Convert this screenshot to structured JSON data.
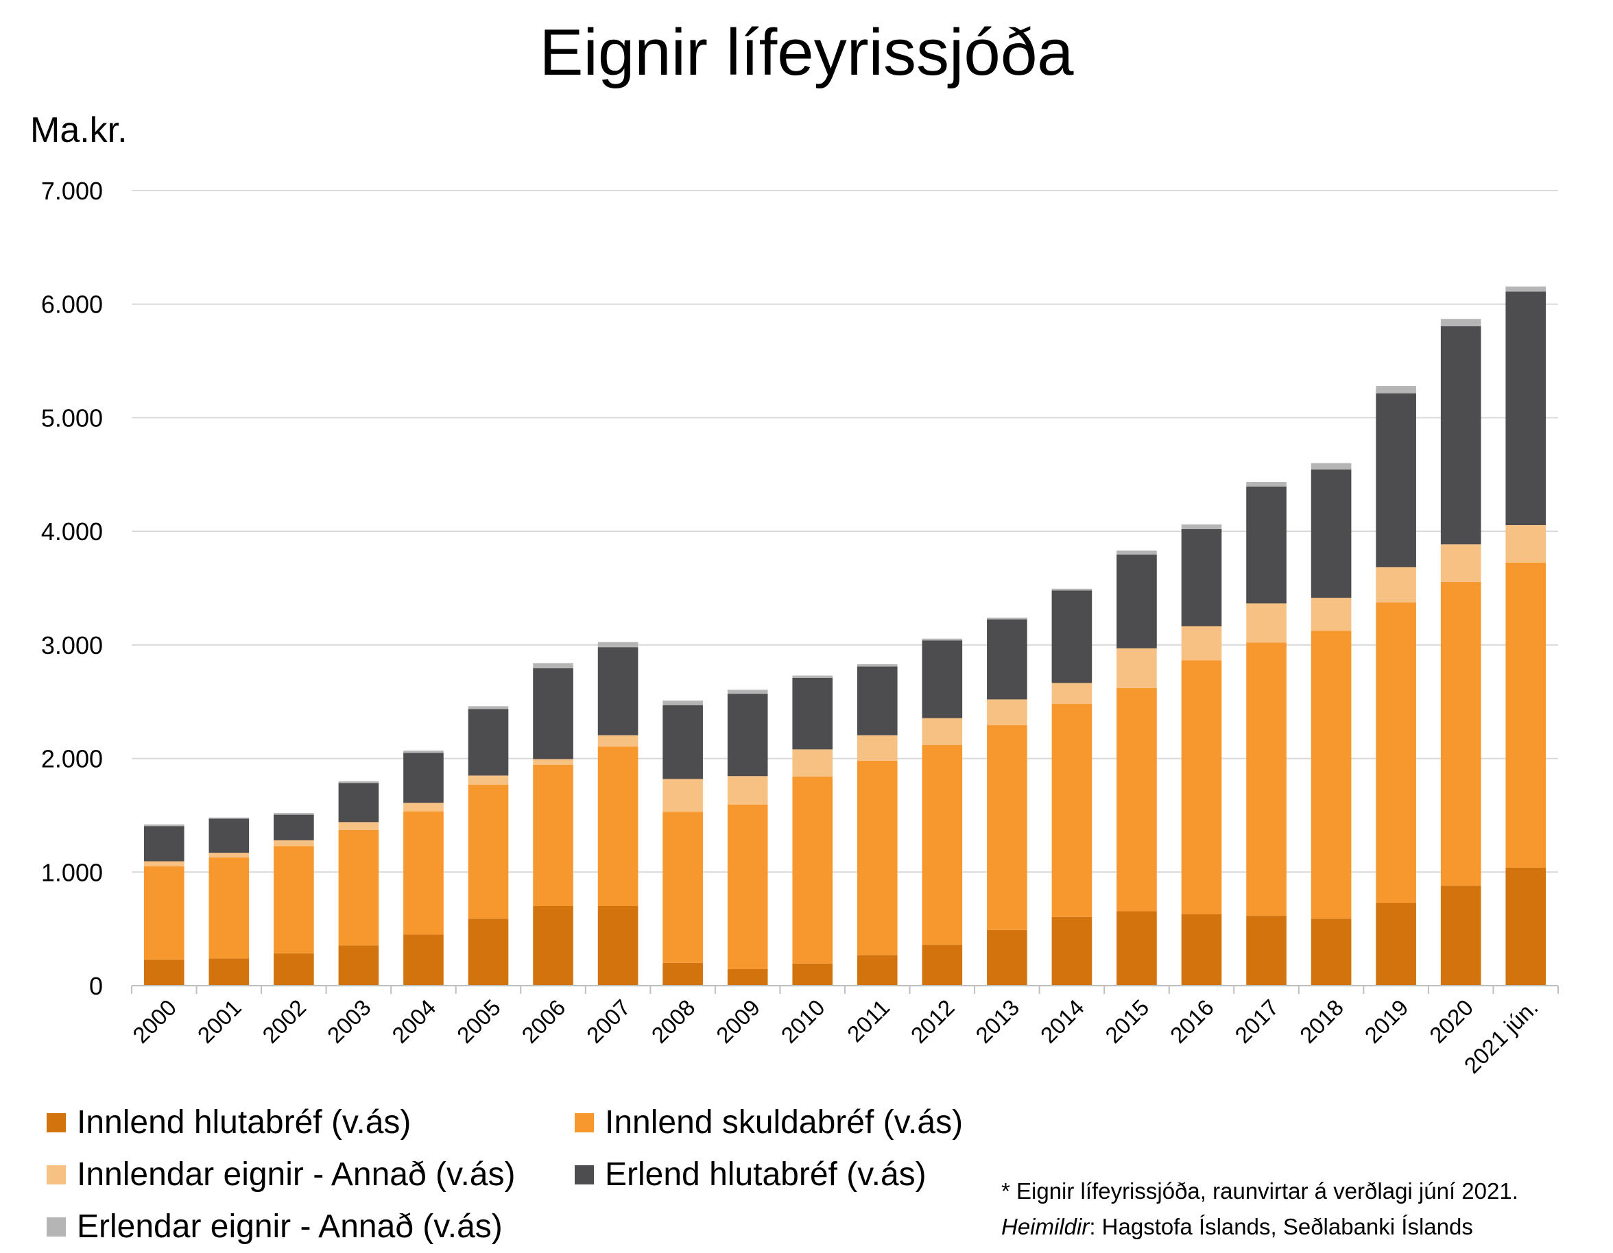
{
  "chart_data": {
    "type": "bar",
    "stacked": true,
    "title": "Eignir lífeyrissjóða",
    "ylabel": "Ma.kr.",
    "xlabel": "",
    "ylim": [
      0,
      7000
    ],
    "yticks": [
      0,
      1000,
      2000,
      3000,
      4000,
      5000,
      6000,
      7000
    ],
    "ytick_labels": [
      "0",
      "1.000",
      "2.000",
      "3.000",
      "4.000",
      "5.000",
      "6.000",
      "7.000"
    ],
    "grid": true,
    "legend_position": "bottom-left",
    "categories": [
      "2000",
      "2001",
      "2002",
      "2003",
      "2004",
      "2005",
      "2006",
      "2007",
      "2008",
      "2009",
      "2010",
      "2011",
      "2012",
      "2013",
      "2014",
      "2015",
      "2016",
      "2017",
      "2018",
      "2019",
      "2020",
      "2021 jún."
    ],
    "series": [
      {
        "name": "Innlend hlutabréf (v.ás)",
        "color": "#D2730E",
        "values": [
          230,
          240,
          285,
          355,
          450,
          590,
          700,
          700,
          200,
          145,
          195,
          270,
          360,
          490,
          605,
          655,
          630,
          615,
          590,
          730,
          880,
          1040
        ]
      },
      {
        "name": "Innlend skuldabréf (v.ás)",
        "color": "#F7982F",
        "values": [
          820,
          890,
          945,
          1015,
          1085,
          1180,
          1245,
          1405,
          1330,
          1450,
          1645,
          1710,
          1760,
          1805,
          1875,
          1965,
          2235,
          2405,
          2535,
          2645,
          2675,
          2685
        ]
      },
      {
        "name": "Innlendar eignir - Annað (v.ás)",
        "color": "#F8C184",
        "values": [
          45,
          40,
          50,
          70,
          75,
          80,
          50,
          100,
          290,
          250,
          240,
          225,
          235,
          225,
          185,
          350,
          300,
          345,
          290,
          310,
          330,
          330
        ]
      },
      {
        "name": "Erlend hlutabréf (v.ás)",
        "color": "#4D4D4F",
        "values": [
          310,
          300,
          225,
          345,
          440,
          585,
          800,
          775,
          650,
          725,
          630,
          605,
          685,
          705,
          815,
          825,
          855,
          1030,
          1130,
          1530,
          1920,
          2055
        ]
      },
      {
        "name": "Erlendar eignir - Annað (v.ás)",
        "color": "#B5B5B5",
        "values": [
          15,
          10,
          15,
          15,
          20,
          25,
          45,
          45,
          40,
          35,
          20,
          20,
          15,
          15,
          15,
          35,
          40,
          40,
          55,
          65,
          65,
          45
        ]
      }
    ]
  },
  "notes": {
    "line1": "* Eignir lífeyrissjóða, raunvirtar á verðlagi júní 2021.",
    "sources_label": "Heimildir",
    "sources_text": ": Hagstofa Íslands, Seðlabanki Íslands"
  }
}
